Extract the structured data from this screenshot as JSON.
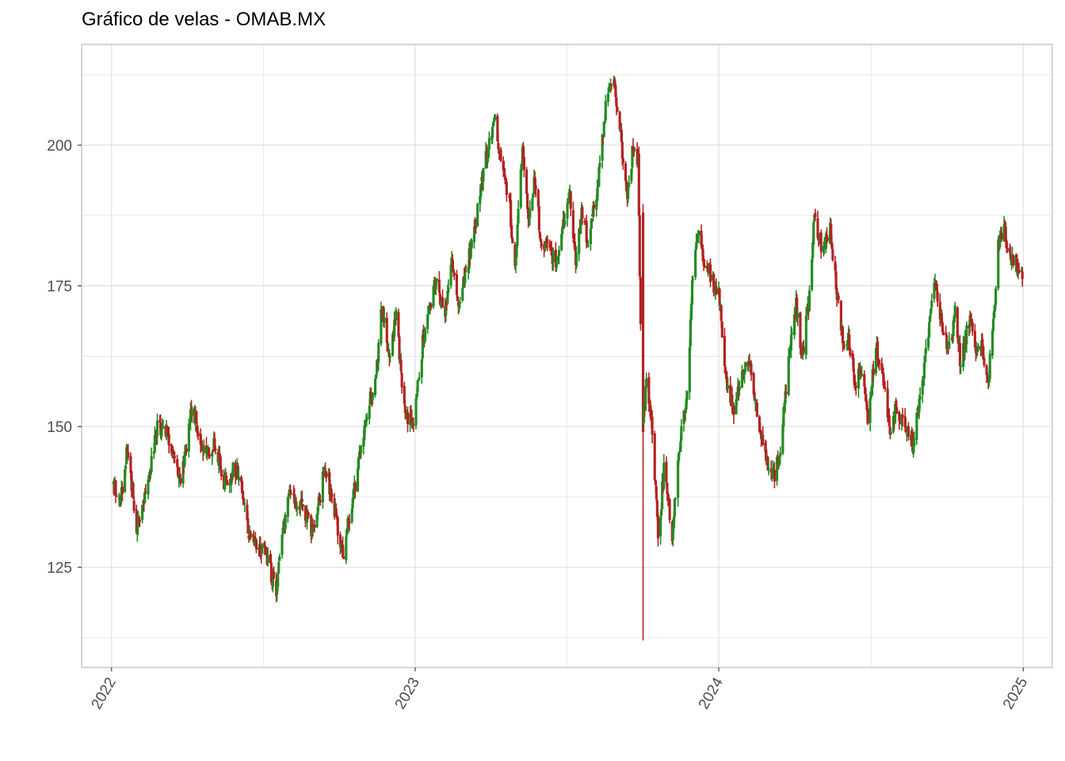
{
  "chart_data": {
    "type": "candlestick",
    "title": "Gráfico de velas - OMAB.MX",
    "xlabel": "",
    "ylabel": "",
    "x_ticks": [
      "2022",
      "2023",
      "2024",
      "2025"
    ],
    "y_ticks": [
      125,
      150,
      175,
      200
    ],
    "xlim": [
      "2021-11-26",
      "2025-02-05"
    ],
    "ylim": [
      107.2,
      217.9
    ],
    "grid": true,
    "legend": "none",
    "colors": {
      "up": "#228B22",
      "down": "#B22222",
      "grid": "#DEDEDE",
      "panel_border": "#B3B3B3",
      "axis_text": "#4D4D4D"
    },
    "anchors": [
      [
        "2022-01-03",
        140
      ],
      [
        "2022-01-12",
        137
      ],
      [
        "2022-01-20",
        147
      ],
      [
        "2022-01-31",
        132
      ],
      [
        "2022-02-10",
        137
      ],
      [
        "2022-02-25",
        150
      ],
      [
        "2022-03-11",
        148
      ],
      [
        "2022-03-23",
        140
      ],
      [
        "2022-04-01",
        146
      ],
      [
        "2022-04-08",
        154
      ],
      [
        "2022-04-20",
        145
      ],
      [
        "2022-05-05",
        147
      ],
      [
        "2022-05-16",
        140
      ],
      [
        "2022-06-01",
        143
      ],
      [
        "2022-06-17",
        130
      ],
      [
        "2022-07-05",
        127
      ],
      [
        "2022-07-18",
        121
      ],
      [
        "2022-08-01",
        138
      ],
      [
        "2022-08-16",
        136
      ],
      [
        "2022-09-01",
        131
      ],
      [
        "2022-09-15",
        143
      ],
      [
        "2022-09-29",
        133
      ],
      [
        "2022-10-06",
        127
      ],
      [
        "2022-10-14",
        134
      ],
      [
        "2022-10-25",
        143
      ],
      [
        "2022-11-03",
        152
      ],
      [
        "2022-11-14",
        158
      ],
      [
        "2022-11-22",
        171
      ],
      [
        "2022-12-01",
        163
      ],
      [
        "2022-12-09",
        170
      ],
      [
        "2022-12-20",
        152
      ],
      [
        "2022-12-30",
        151
      ],
      [
        "2023-01-11",
        166
      ],
      [
        "2023-01-25",
        176
      ],
      [
        "2023-02-06",
        170
      ],
      [
        "2023-02-13",
        180
      ],
      [
        "2023-02-23",
        171
      ],
      [
        "2023-03-03",
        178
      ],
      [
        "2023-03-13",
        184
      ],
      [
        "2023-03-24",
        196
      ],
      [
        "2023-04-06",
        205
      ],
      [
        "2023-04-14",
        198
      ],
      [
        "2023-04-24",
        190
      ],
      [
        "2023-05-01",
        178
      ],
      [
        "2023-05-10",
        199
      ],
      [
        "2023-05-18",
        186
      ],
      [
        "2023-05-25",
        194
      ],
      [
        "2023-06-01",
        183
      ],
      [
        "2023-06-12",
        181
      ],
      [
        "2023-06-19",
        179
      ],
      [
        "2023-06-28",
        186
      ],
      [
        "2023-07-06",
        192
      ],
      [
        "2023-07-13",
        178
      ],
      [
        "2023-07-20",
        188
      ],
      [
        "2023-07-28",
        183
      ],
      [
        "2023-08-07",
        191
      ],
      [
        "2023-08-18",
        207
      ],
      [
        "2023-08-29",
        211
      ],
      [
        "2023-09-05",
        202
      ],
      [
        "2023-09-13",
        190
      ],
      [
        "2023-09-20",
        200
      ],
      [
        "2023-09-26",
        197
      ],
      [
        "2023-10-01",
        149
      ],
      [
        "2023-10-06",
        158
      ],
      [
        "2023-10-13",
        150
      ],
      [
        "2023-10-20",
        130
      ],
      [
        "2023-10-27",
        142
      ],
      [
        "2023-11-06",
        131
      ],
      [
        "2023-11-14",
        146
      ],
      [
        "2023-11-24",
        155
      ],
      [
        "2023-11-30",
        175
      ],
      [
        "2023-12-07",
        184
      ],
      [
        "2023-12-15",
        179
      ],
      [
        "2024-01-02",
        173
      ],
      [
        "2024-01-10",
        158
      ],
      [
        "2024-01-18",
        153
      ],
      [
        "2024-01-29",
        159
      ],
      [
        "2024-02-06",
        162
      ],
      [
        "2024-02-15",
        153
      ],
      [
        "2024-02-28",
        144
      ],
      [
        "2024-03-07",
        141
      ],
      [
        "2024-03-15",
        146
      ],
      [
        "2024-03-27",
        164
      ],
      [
        "2024-04-03",
        172
      ],
      [
        "2024-04-10",
        162
      ],
      [
        "2024-04-18",
        172
      ],
      [
        "2024-04-25",
        188
      ],
      [
        "2024-05-03",
        182
      ],
      [
        "2024-05-14",
        185
      ],
      [
        "2024-05-21",
        175
      ],
      [
        "2024-05-29",
        165
      ],
      [
        "2024-06-06",
        165
      ],
      [
        "2024-06-13",
        157
      ],
      [
        "2024-06-20",
        160
      ],
      [
        "2024-06-28",
        152
      ],
      [
        "2024-07-08",
        164
      ],
      [
        "2024-07-18",
        157
      ],
      [
        "2024-07-25",
        150
      ],
      [
        "2024-08-01",
        153
      ],
      [
        "2024-08-12",
        150
      ],
      [
        "2024-08-21",
        147
      ],
      [
        "2024-09-02",
        157
      ],
      [
        "2024-09-10",
        168
      ],
      [
        "2024-09-18",
        176
      ],
      [
        "2024-09-26",
        166
      ],
      [
        "2024-10-04",
        164
      ],
      [
        "2024-10-11",
        170
      ],
      [
        "2024-10-18",
        161
      ],
      [
        "2024-10-28",
        169
      ],
      [
        "2024-11-05",
        163
      ],
      [
        "2024-11-12",
        165
      ],
      [
        "2024-11-20",
        158
      ],
      [
        "2024-11-26",
        168
      ],
      [
        "2024-12-02",
        183
      ],
      [
        "2024-12-09",
        185
      ],
      [
        "2024-12-18",
        180
      ],
      [
        "2024-12-31",
        177
      ]
    ],
    "ohlc": []
  }
}
